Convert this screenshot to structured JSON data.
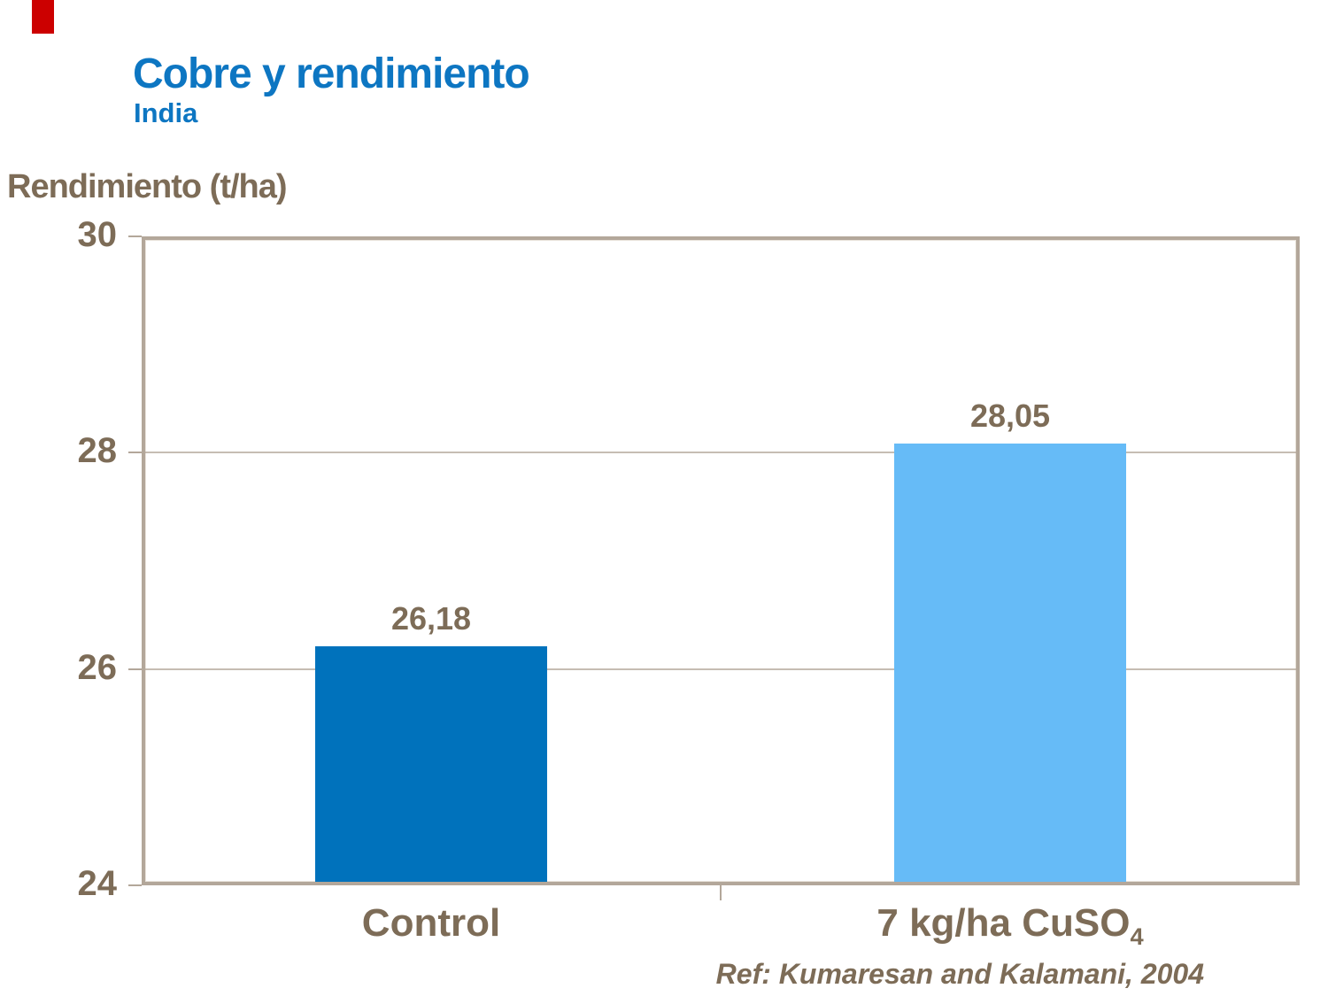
{
  "slide": {
    "title": "Cobre y rendimiento",
    "subtitle": "India",
    "reference": "Ref: Kumaresan and Kalamani, 2004",
    "accent_color": "#cc0000",
    "title_color": "#0d76c2",
    "text_color": "#7d6c57",
    "axis_color": "#b3a79a"
  },
  "chart_data": {
    "type": "bar",
    "title": "Cobre y rendimiento — India",
    "xlabel": "",
    "ylabel": "Rendimiento (t/ha)",
    "ylim": [
      24,
      30
    ],
    "yticks": [
      24,
      26,
      28,
      30
    ],
    "grid": true,
    "legend_position": "none",
    "categories": [
      "Control",
      "7 kg/ha CuSO4"
    ],
    "category_rich": [
      {
        "text": "Control",
        "sub": ""
      },
      {
        "text": "7 kg/ha CuSO",
        "sub": "4"
      }
    ],
    "values": [
      26.18,
      28.05
    ],
    "value_labels": [
      "26,18",
      "28,05"
    ],
    "bar_colors": [
      "#0072bc",
      "#66bbf7"
    ]
  }
}
